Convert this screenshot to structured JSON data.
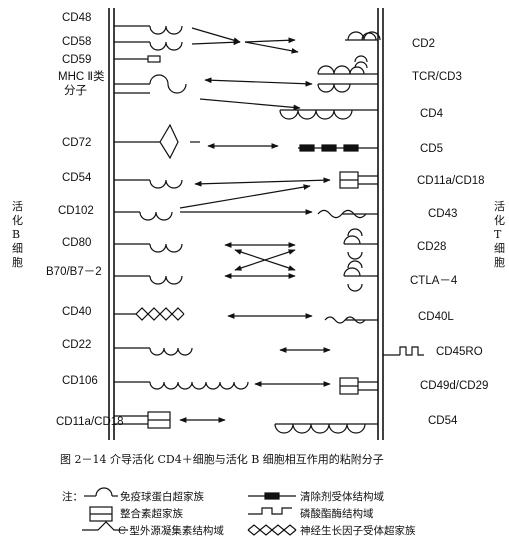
{
  "b_cell_label": "活化B细胞",
  "t_cell_label": "活化T细胞",
  "left_molecules": [
    "CD48",
    "CD58",
    "CD59",
    "MHC Ⅱ类",
    "分子",
    "CD72",
    "CD54",
    "CD102",
    "CD80",
    "B70/B7－2",
    "CD40",
    "CD22",
    "CD106",
    "CD11a/CD18"
  ],
  "right_molecules": [
    "CD2",
    "TCR/CD3",
    "CD4",
    "CD5",
    "CD11a/CD18",
    "CD43",
    "CD28",
    "CTLA－4",
    "CD40L",
    "CD45RO",
    "CD49d/CD29",
    "CD54"
  ],
  "caption": "图 2－14  介导活化 CD4＋细胞与活化 B 细胞相互作用的粘附分子",
  "legend": {
    "prefix": "注：",
    "items": [
      "免疫球蛋白超家族",
      "清除剂受体结构域",
      "整合素超家族",
      "磷酸酯酶结构域",
      "C 型外源凝集素结构域",
      "神经生长因子受体超家族"
    ]
  }
}
